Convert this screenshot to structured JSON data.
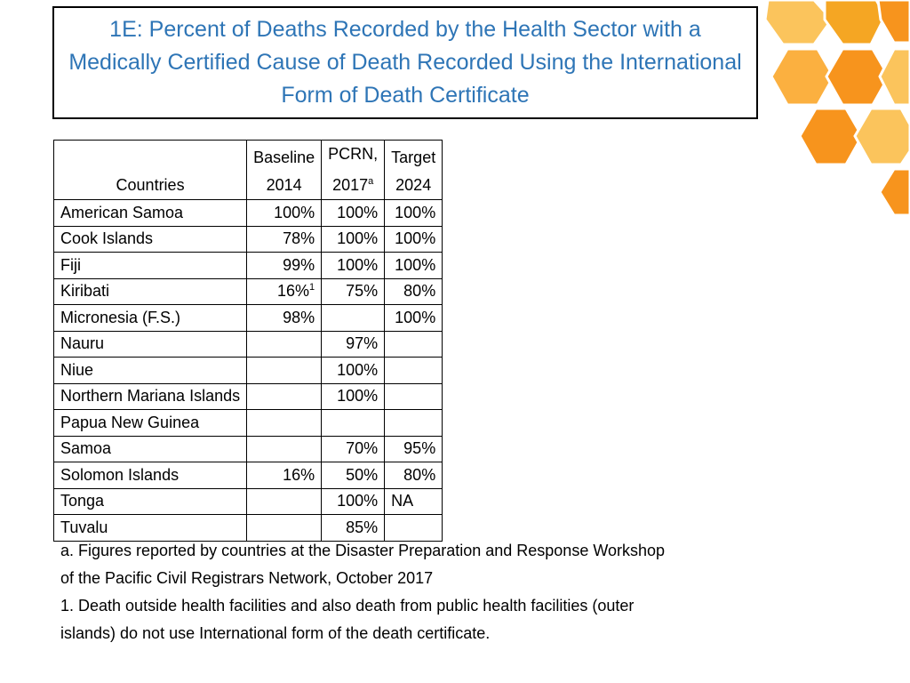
{
  "title": "1E: Percent of Deaths Recorded by the Health Sector with a Medically Certified Cause of Death Recorded Using the International Form of Death Certificate",
  "table": {
    "header": [
      {
        "lines": [
          "",
          "Countries"
        ]
      },
      {
        "lines": [
          "Baseline",
          "2014"
        ]
      },
      {
        "lines": [
          "PCRN,",
          "2017"
        ],
        "sup": "a"
      },
      {
        "lines": [
          "Target",
          "2024"
        ]
      }
    ],
    "rows": [
      [
        "American Samoa",
        "100%",
        "100%",
        "100%"
      ],
      [
        "Cook Islands",
        "78%",
        "100%",
        "100%"
      ],
      [
        "Fiji",
        "99%",
        "100%",
        "100%"
      ],
      [
        "Kiribati",
        {
          "text": "16%",
          "sup": "1"
        },
        "75%",
        "80%"
      ],
      [
        "Micronesia (F.S.)",
        "98%",
        null,
        "100%"
      ],
      [
        "Nauru",
        null,
        "97%",
        null
      ],
      [
        "Niue",
        null,
        "100%",
        null
      ],
      [
        "Northern Mariana Islands",
        null,
        "100%",
        null
      ],
      [
        "Papua New Guinea",
        null,
        null,
        null
      ],
      [
        "Samoa",
        null,
        "70%",
        "95%"
      ],
      [
        "Solomon Islands",
        "16%",
        "50%",
        "80%"
      ],
      [
        "Tonga",
        null,
        "100%",
        "NA"
      ],
      [
        "Tuvalu",
        null,
        "85%",
        null
      ]
    ]
  },
  "notes": [
    "a. Figures reported by countries at the Disaster Preparation and Response Workshop of the Pacific Civil Registrars Network, October 2017",
    "1. Death outside health facilities and also death from public health facilities (outer islands) do not use International form of the death certificate."
  ]
}
